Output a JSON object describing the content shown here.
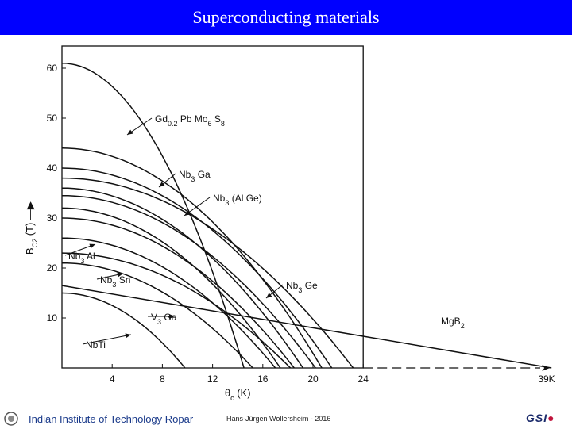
{
  "slide": {
    "title": "Superconducting materials",
    "footer_left": "Indian Institute of Technology Ropar",
    "footer_mid": "Hans-Jürgen Wollersheim - 2016",
    "logo_right_text": "GSI"
  },
  "colors": {
    "title_bar": "#0000ff",
    "line": "#111111"
  },
  "chart_data": {
    "type": "line",
    "title": "",
    "xlabel": "θc (K)",
    "ylabel": "BC2 (T)",
    "xlim": [
      0,
      24
    ],
    "ylim": [
      0,
      60
    ],
    "x_ticks": [
      "4",
      "8",
      "12",
      "16",
      "20",
      "24"
    ],
    "y_ticks": [
      "10",
      "20",
      "30",
      "40",
      "50",
      "60"
    ],
    "extension": {
      "tc": 39,
      "tick_label": "39K"
    },
    "series": [
      {
        "name": "Gd0.2 Pb Mo6 S8",
        "Bc2_0": 61,
        "Tc": 14.5
      },
      {
        "name": "Nb3 Ga",
        "Bc2_0": 34.5,
        "Tc": 20.2
      },
      {
        "name": "Nb3 (Al Ge)",
        "Bc2_0": 44,
        "Tc": 20.7
      },
      {
        "name": "Nb3 Al",
        "Bc2_0": 30,
        "Tc": 18.5
      },
      {
        "name": "Nb3 Sn",
        "Bc2_0": 23,
        "Tc": 18.2
      },
      {
        "name": "Nb3 Ge",
        "Bc2_0": 38,
        "Tc": 23.2
      },
      {
        "name": "V3 Ga",
        "Bc2_0": 21,
        "Tc": 15.2
      },
      {
        "name": "NbTi",
        "Bc2_0": 15,
        "Tc": 9.8
      },
      {
        "name": "",
        "Bc2_0": 40,
        "Tc": 21.5
      },
      {
        "name": "",
        "Bc2_0": 36,
        "Tc": 19.2
      },
      {
        "name": "",
        "Bc2_0": 32,
        "Tc": 17.4
      },
      {
        "name": "",
        "Bc2_0": 26,
        "Tc": 17.0
      },
      {
        "name": "MgB2",
        "x": [
          0,
          39
        ],
        "y": [
          16.5,
          0
        ]
      }
    ],
    "labels": [
      {
        "text": "Gd0.2 Pb Mo6 S8"
      },
      {
        "text": "Nb3 Ga"
      },
      {
        "text": "Nb3 (Al Ge)"
      },
      {
        "text": "Nb3 Al"
      },
      {
        "text": "Nb3 Sn"
      },
      {
        "text": "Nb3 Ge"
      },
      {
        "text": "V3 Ga"
      },
      {
        "text": "NbTi"
      },
      {
        "text": "MgB2"
      }
    ]
  }
}
